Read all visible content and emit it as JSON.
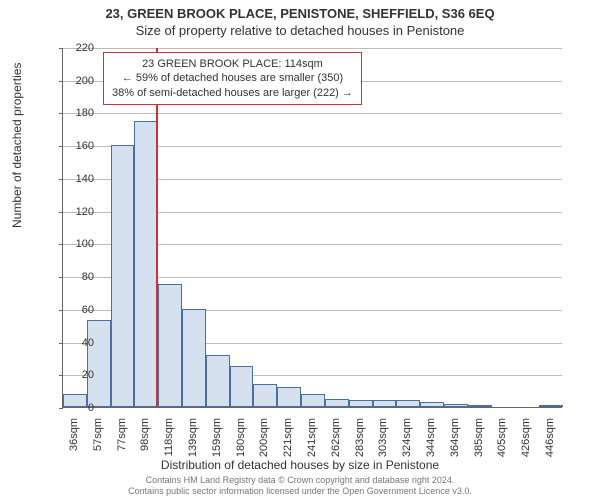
{
  "title": "23, GREEN BROOK PLACE, PENISTONE, SHEFFIELD, S36 6EQ",
  "subtitle": "Size of property relative to detached houses in Penistone",
  "y_axis_label": "Number of detached properties",
  "x_axis_label": "Distribution of detached houses by size in Penistone",
  "annotation": {
    "line1": "23 GREEN BROOK PLACE: 114sqm",
    "line2": "← 59% of detached houses are smaller (350)",
    "line3": "38% of semi-detached houses are larger (222) →"
  },
  "footer": {
    "line1": "Contains HM Land Registry data © Crown copyright and database right 2024.",
    "line2": "Contains public sector information licensed under the Open Government Licence v3.0."
  },
  "chart": {
    "type": "histogram",
    "ylim": [
      0,
      220
    ],
    "ytick_step": 20,
    "bar_fill": "#d6e1f0",
    "bar_stroke": "#4a6fa5",
    "marker_color": "#cc3333",
    "grid_color": "#bbbbbb",
    "background_color": "#ffffff",
    "marker_x_index": 3.9,
    "x_labels": [
      "36sqm",
      "57sqm",
      "77sqm",
      "98sqm",
      "118sqm",
      "139sqm",
      "159sqm",
      "180sqm",
      "200sqm",
      "221sqm",
      "241sqm",
      "262sqm",
      "283sqm",
      "303sqm",
      "324sqm",
      "344sqm",
      "364sqm",
      "385sqm",
      "405sqm",
      "426sqm",
      "446sqm"
    ],
    "values": [
      8,
      53,
      160,
      175,
      75,
      60,
      32,
      25,
      14,
      12,
      8,
      5,
      4,
      4,
      4,
      3,
      2,
      1,
      0,
      0,
      1
    ]
  }
}
